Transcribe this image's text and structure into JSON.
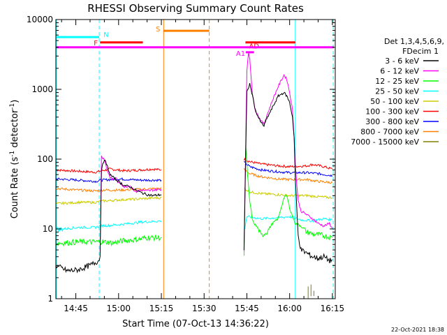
{
  "chart_data": {
    "type": "line",
    "title": "RHESSI Observing Summary Count Rates",
    "xlabel": "Start Time (07-Oct-13 14:36:22)",
    "ylabel_main": "Count Rate (s",
    "ylabel_sup": "-1",
    "ylabel_tail": " detector",
    "ylabel_end": ")",
    "yscale": "log",
    "ylim": [
      1,
      10000
    ],
    "xlim_minutes": [
      38,
      136
    ],
    "x_ticks": [
      {
        "t": 45,
        "label": "14:45"
      },
      {
        "t": 60,
        "label": "15:00"
      },
      {
        "t": 75,
        "label": "15:15"
      },
      {
        "t": 90,
        "label": "15:30"
      },
      {
        "t": 105,
        "label": "15:45"
      },
      {
        "t": 120,
        "label": "16:00"
      },
      {
        "t": 135,
        "label": "16:15"
      }
    ],
    "y_ticks": [
      {
        "v": 1,
        "label": "1"
      },
      {
        "v": 10,
        "label": "10"
      },
      {
        "v": 100,
        "label": "100"
      },
      {
        "v": 1000,
        "label": "1000"
      },
      {
        "v": 10000,
        "label": "10000"
      }
    ],
    "legend_header": [
      "Det 1,3,4,5,6,9,",
      "FDecim 1"
    ],
    "legend": [
      {
        "label": "3 - 6 keV",
        "color": "#000000"
      },
      {
        "label": "6 - 12 keV",
        "color": "#ff00ff"
      },
      {
        "label": "12 - 25 keV",
        "color": "#00ff00"
      },
      {
        "label": "25 - 50 keV",
        "color": "#00ffff"
      },
      {
        "label": "50 - 100 keV",
        "color": "#cccc00"
      },
      {
        "label": "100 - 300 keV",
        "color": "#ff0000"
      },
      {
        "label": "300 - 800 keV",
        "color": "#0000ff"
      },
      {
        "label": "800 - 7000 keV",
        "color": "#ff8000"
      },
      {
        "label": "7000 - 15000 keV",
        "color": "#808000"
      }
    ],
    "series": [
      {
        "color": "#ff0000",
        "segments": [
          [
            [
              38,
              70
            ],
            [
              46,
              67
            ],
            [
              52,
              65
            ],
            [
              54,
              68
            ],
            [
              57,
              72
            ],
            [
              62,
              68
            ],
            [
              68,
              70
            ],
            [
              72,
              72
            ],
            [
              75,
              70
            ]
          ],
          [
            [
              104,
              100
            ],
            [
              106,
              92
            ],
            [
              110,
              85
            ],
            [
              116,
              80
            ],
            [
              120,
              78
            ],
            [
              126,
              80
            ],
            [
              128,
              84
            ],
            [
              132,
              78
            ],
            [
              135,
              72
            ]
          ]
        ]
      },
      {
        "color": "#0000ff",
        "segments": [
          [
            [
              38,
              52
            ],
            [
              46,
              50
            ],
            [
              52,
              48
            ],
            [
              54,
              50
            ],
            [
              60,
              52
            ],
            [
              68,
              50
            ],
            [
              75,
              50
            ]
          ],
          [
            [
              104,
              90
            ],
            [
              106,
              78
            ],
            [
              110,
              70
            ],
            [
              116,
              66
            ],
            [
              120,
              64
            ],
            [
              126,
              64
            ],
            [
              130,
              62
            ],
            [
              135,
              58
            ]
          ]
        ]
      },
      {
        "color": "#ff8000",
        "segments": [
          [
            [
              38,
              38
            ],
            [
              46,
              36
            ],
            [
              52,
              35
            ],
            [
              54,
              36
            ],
            [
              60,
              36
            ],
            [
              68,
              37
            ],
            [
              75,
              38
            ]
          ],
          [
            [
              104,
              72
            ],
            [
              106,
              62
            ],
            [
              110,
              56
            ],
            [
              116,
              52
            ],
            [
              120,
              51
            ],
            [
              126,
              51
            ],
            [
              130,
              48
            ],
            [
              135,
              46
            ]
          ]
        ]
      },
      {
        "color": "#cccc00",
        "segments": [
          [
            [
              38,
              23
            ],
            [
              46,
              24
            ],
            [
              52,
              24
            ],
            [
              54,
              25
            ],
            [
              60,
              26
            ],
            [
              68,
              27
            ],
            [
              75,
              28
            ]
          ],
          [
            [
              104,
              38
            ],
            [
              106,
              34
            ],
            [
              110,
              32
            ],
            [
              116,
              31
            ],
            [
              120,
              30
            ],
            [
              126,
              30
            ],
            [
              130,
              29
            ],
            [
              135,
              28
            ]
          ]
        ]
      },
      {
        "color": "#00ffff",
        "segments": [
          [
            [
              38,
              9.8
            ],
            [
              46,
              10.5
            ],
            [
              52,
              10.5
            ],
            [
              53.5,
              11
            ],
            [
              60,
              11.5
            ],
            [
              68,
              12.5
            ],
            [
              75,
              13
            ]
          ],
          [
            [
              104,
              9
            ],
            [
              105,
              15
            ],
            [
              110,
              14
            ],
            [
              116,
              14.5
            ],
            [
              120,
              15
            ],
            [
              124,
              13.5
            ],
            [
              128,
              13
            ],
            [
              132,
              14
            ],
            [
              135,
              13.5
            ]
          ]
        ]
      },
      {
        "color": "#00ff00",
        "segments": [
          [
            [
              38,
              6.2
            ],
            [
              46,
              6.5
            ],
            [
              52,
              6.5
            ],
            [
              54,
              6.6
            ],
            [
              58,
              6.3
            ],
            [
              62,
              6.8
            ],
            [
              66,
              7
            ],
            [
              70,
              7.5
            ],
            [
              75,
              7.5
            ]
          ],
          [
            [
              104,
              4
            ],
            [
              104.6,
              160
            ],
            [
              105.2,
              60
            ],
            [
              106,
              25
            ],
            [
              107,
              13
            ],
            [
              109,
              10
            ],
            [
              110,
              8
            ],
            [
              112,
              9
            ],
            [
              114,
              12
            ],
            [
              116,
              14
            ],
            [
              117,
              20
            ],
            [
              118,
              28
            ],
            [
              119,
              30
            ],
            [
              120,
              20
            ],
            [
              121,
              15
            ],
            [
              122,
              12
            ],
            [
              124,
              11
            ],
            [
              126,
              9
            ],
            [
              128,
              8.5
            ],
            [
              132,
              8
            ],
            [
              135,
              7.5
            ]
          ]
        ]
      },
      {
        "color": "#ff00ff",
        "segments": [
          [
            [
              53.5,
              5
            ],
            [
              54,
              110
            ],
            [
              55,
              100
            ],
            [
              56,
              70
            ],
            [
              57,
              55
            ],
            [
              58,
              50
            ],
            [
              59,
              55
            ],
            [
              60,
              45
            ],
            [
              61,
              44
            ],
            [
              62,
              40
            ],
            [
              64,
              42
            ],
            [
              66,
              34
            ],
            [
              68,
              36
            ],
            [
              70,
              35
            ],
            [
              72,
              36
            ],
            [
              75,
              37
            ]
          ],
          [
            [
              104,
              5
            ],
            [
              105,
              1800
            ],
            [
              105.6,
              3400
            ],
            [
              106,
              2800
            ],
            [
              107,
              800
            ],
            [
              108,
              500
            ],
            [
              109,
              420
            ],
            [
              110,
              350
            ],
            [
              111,
              320
            ],
            [
              112,
              420
            ],
            [
              114,
              700
            ],
            [
              116,
              1100
            ],
            [
              118,
              1600
            ],
            [
              119,
              1400
            ],
            [
              120,
              900
            ],
            [
              121,
              500
            ],
            [
              121.6,
              200
            ],
            [
              122,
              80
            ],
            [
              123,
              25
            ],
            [
              124,
              18
            ],
            [
              126,
              16
            ],
            [
              128,
              14
            ],
            [
              130,
              12
            ],
            [
              132,
              11
            ],
            [
              134,
              12
            ],
            [
              135,
              10
            ]
          ]
        ]
      },
      {
        "color": "#000000",
        "segments": [
          [
            [
              38,
              3
            ],
            [
              42,
              2.5
            ],
            [
              46,
              2.6
            ],
            [
              50,
              3
            ],
            [
              53,
              3.5
            ],
            [
              53.5,
              4
            ],
            [
              54,
              70
            ],
            [
              55,
              100
            ],
            [
              56,
              80
            ],
            [
              57,
              60
            ],
            [
              58,
              55
            ],
            [
              60,
              48
            ],
            [
              62,
              42
            ],
            [
              64,
              40
            ],
            [
              66,
              36
            ],
            [
              68,
              33
            ],
            [
              70,
              31
            ],
            [
              72,
              30
            ],
            [
              75,
              31
            ]
          ],
          [
            [
              104,
              5
            ],
            [
              105,
              900
            ],
            [
              106,
              1200
            ],
            [
              107,
              800
            ],
            [
              108,
              500
            ],
            [
              109,
              400
            ],
            [
              110,
              330
            ],
            [
              111,
              300
            ],
            [
              112,
              380
            ],
            [
              114,
              550
            ],
            [
              116,
              800
            ],
            [
              118,
              900
            ],
            [
              119,
              800
            ],
            [
              120,
              650
            ],
            [
              121,
              400
            ],
            [
              121.6,
              200
            ],
            [
              122,
              50
            ],
            [
              123,
              8
            ],
            [
              124,
              5
            ],
            [
              126,
              4.5
            ],
            [
              128,
              4
            ],
            [
              130,
              3.8
            ],
            [
              132,
              4
            ],
            [
              134,
              3.5
            ],
            [
              135,
              3.6
            ]
          ]
        ]
      },
      {
        "color": "#808000",
        "segments": [
          [
            [
              126.5,
              1
            ],
            [
              126.5,
              1.5
            ]
          ],
          [
            [
              127.5,
              1
            ],
            [
              127.5,
              1.6
            ]
          ],
          [
            [
              128.5,
              1
            ],
            [
              128.5,
              1.3
            ]
          ]
        ]
      }
    ],
    "vlines": [
      {
        "t": 38.2,
        "color": "#00ffff",
        "dash": false
      },
      {
        "t": 53.2,
        "color": "#00ffff",
        "dash": true
      },
      {
        "t": 75.8,
        "color": "#ff8000",
        "dash": false
      },
      {
        "t": 91.8,
        "color": "#ff8000",
        "dash": true
      },
      {
        "t": 122.0,
        "color": "#00ffff",
        "dash": false
      },
      {
        "t": 135.3,
        "color": "#00ffff",
        "dash": true
      }
    ],
    "flags": [
      {
        "label": "N",
        "color": "#00ffff",
        "t0": 38.3,
        "t1": 53.2,
        "y": 5600,
        "label_t": 55.6,
        "label_y": 6200
      },
      {
        "label": "F",
        "color": "#ff0000",
        "t0": 53.5,
        "t1": 68.5,
        "y": 4700,
        "label_t": 52.0,
        "label_y": 4700
      },
      {
        "label": "S",
        "color": "#ff8000",
        "t0": 75.8,
        "t1": 91.8,
        "y": 6900,
        "label_t": 73.8,
        "label_y": 7400
      },
      {
        "label": "AD",
        "color": "#ff0000",
        "t0": 104.5,
        "t1": 122.0,
        "y": 4700,
        "label_t": 107.5,
        "label_y": 4200
      },
      {
        "label": "",
        "color": "#ff00ff",
        "t0": 38.2,
        "t1": 135.5,
        "y": 4000,
        "label_t": 0,
        "label_y": 0
      },
      {
        "label": "A1",
        "color": "#ff00ff",
        "t0": 104.6,
        "t1": 107.5,
        "y": 3400,
        "label_t": 102.8,
        "label_y": 3300
      }
    ],
    "timestamp": "22-Oct-2021 18:38"
  }
}
